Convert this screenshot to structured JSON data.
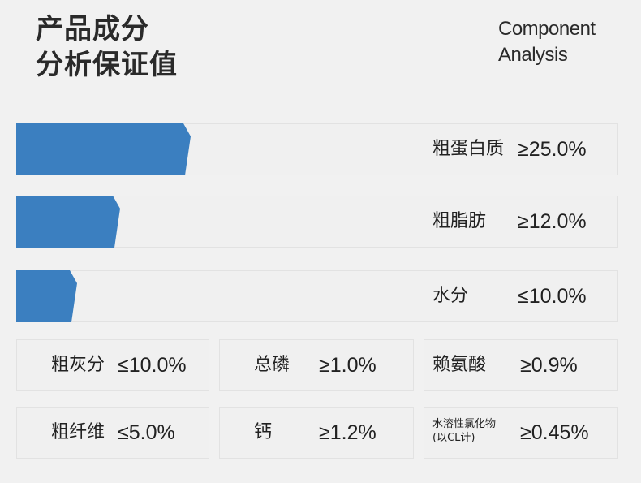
{
  "header": {
    "title_line1": "产品成分",
    "title_line2": "分析保证值",
    "subtitle_line1": "Component",
    "subtitle_line2": "Analysis"
  },
  "bars": [
    {
      "name": "粗蛋白质",
      "value": "≥25.0%",
      "fill_fraction": 0.29
    },
    {
      "name": "粗脂肪",
      "value": "≥12.0%",
      "fill_fraction": 0.17
    },
    {
      "name": "水分",
      "value": "≤10.0%",
      "fill_fraction": 0.1
    }
  ],
  "grid": [
    {
      "name": "粗灰分",
      "value": "≤10.0%"
    },
    {
      "name": "总磷",
      "value": "≥1.0%"
    },
    {
      "name": "赖氨酸",
      "value": "≥0.9%"
    },
    {
      "name": "粗纤维",
      "value": "≤5.0%"
    },
    {
      "name": "钙",
      "value": "≥1.2%"
    },
    {
      "name_line1": "水溶性氯化物",
      "name_line2": "(以CL计)",
      "value": "≥0.45%"
    }
  ],
  "colors": {
    "bar_fill": "#3b7fc0",
    "background": "#f1f1f1"
  }
}
